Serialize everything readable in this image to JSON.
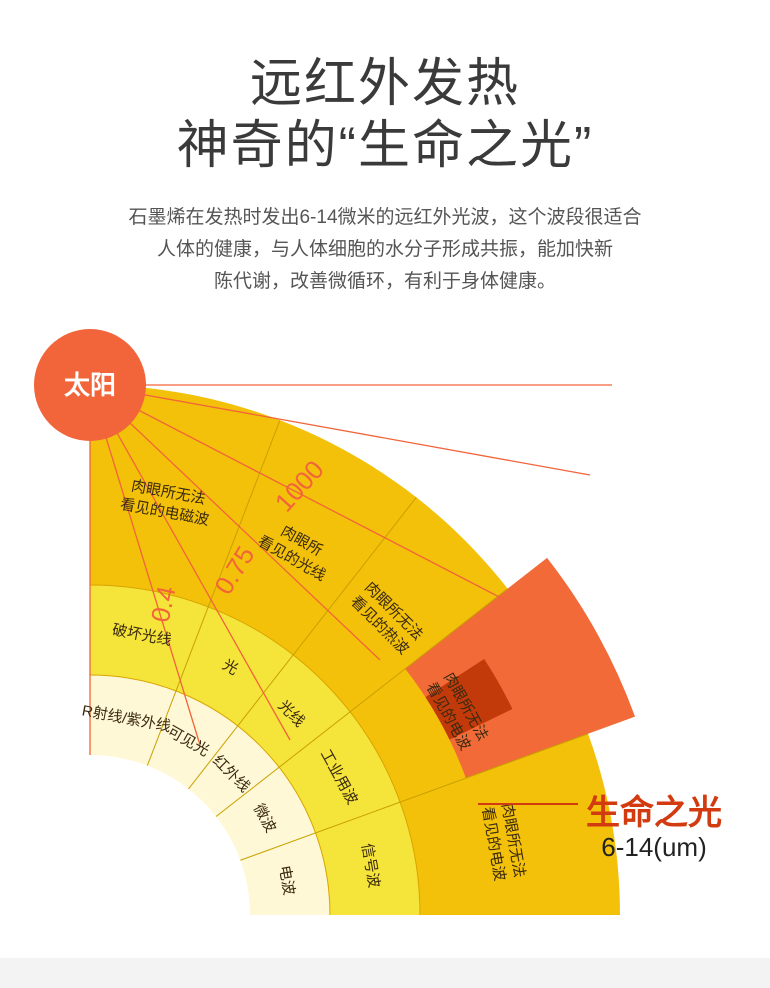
{
  "title": {
    "line1": "远红外发热",
    "line2": "神奇的“生命之光”"
  },
  "description": [
    "石墨烯在发热时发出6-14微米的远红外光波，这个波段很适合",
    "人体的健康，与人体细胞的水分子形成共振，能加快新",
    "陈代谢，改善微循环，有利于身体健康。"
  ],
  "sun": "太阳",
  "boundaries": [
    "0.4",
    "0.75",
    "1000"
  ],
  "sectors": [
    {
      "inner": "R射线/紫外线",
      "middle": "破坏光线",
      "outer": [
        "肉眼所无法",
        "看见的电磁波"
      ]
    },
    {
      "inner": "可见光",
      "middle": "光",
      "outer": [
        "肉眼所",
        "看见的光线"
      ]
    },
    {
      "inner": "红外线",
      "middle": "光线",
      "outer": [
        "肉眼所无法",
        "看见的热波"
      ]
    },
    {
      "inner": "微波",
      "middle": "工业用波",
      "outer": [
        "肉眼所无法",
        "看见的电波"
      ]
    },
    {
      "inner": "电波",
      "middle": "信号波",
      "outer": [
        "肉眼所无法",
        "看见的电波"
      ]
    }
  ],
  "life_light": {
    "title": "生命之光",
    "range": "6-14(um)"
  },
  "colors": {
    "sun": "#f2643a",
    "ring_inner": "#fff8d6",
    "ring_middle": "#f5e53a",
    "ring_outer": "#f3c10a",
    "highlight": "#f26a38",
    "highlight_dark": "#c23a0a",
    "line": "#f2643a"
  }
}
